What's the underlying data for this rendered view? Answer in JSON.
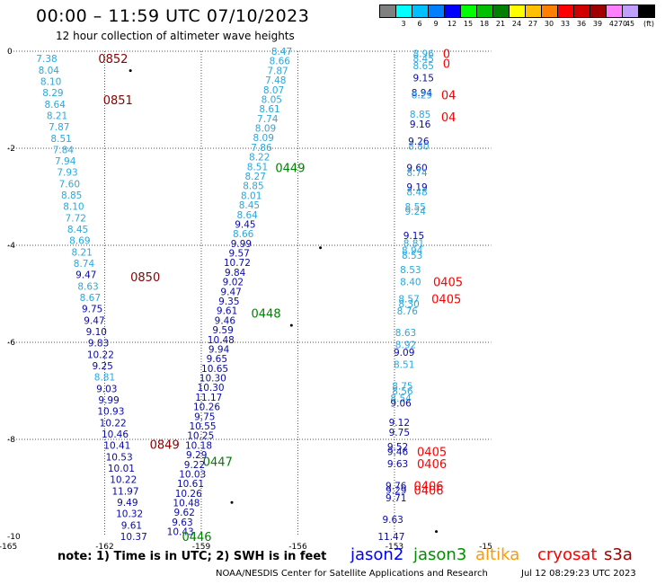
{
  "header": {
    "title": "00:00 – 11:59 UTC 07/10/2023",
    "subtitle": "12 hour collection of altimeter wave heights"
  },
  "scale": {
    "unit_label": "(ft)",
    "bins": [
      {
        "label": "",
        "color": "#808080"
      },
      {
        "label": "3",
        "color": "#00ffff"
      },
      {
        "label": "6",
        "color": "#00c0ff"
      },
      {
        "label": "9",
        "color": "#0080ff"
      },
      {
        "label": "12",
        "color": "#0000ff"
      },
      {
        "label": "15",
        "color": "#00ff00"
      },
      {
        "label": "18",
        "color": "#00c000"
      },
      {
        "label": "21",
        "color": "#008000"
      },
      {
        "label": "24",
        "color": "#ffff00"
      },
      {
        "label": "27",
        "color": "#ffc000"
      },
      {
        "label": "30",
        "color": "#ff8000"
      },
      {
        "label": "33",
        "color": "#ff0000"
      },
      {
        "label": "36",
        "color": "#d00000"
      },
      {
        "label": "39",
        "color": "#a00000"
      },
      {
        "label": "42",
        "color": "#ff80ff"
      },
      {
        "label": "45",
        "color": "#c0a0ff"
      },
      {
        "label": "70",
        "color": "#000000"
      }
    ]
  },
  "axes": {
    "lon_ticks": [
      "-165",
      "-162",
      "-159",
      "-156",
      "-153",
      "-15"
    ],
    "lat_ticks": [
      "0",
      "-2",
      "-4",
      "-6",
      "-8",
      "-10"
    ]
  },
  "colors": {
    "light": "#29a8de",
    "dark": "#0a0aa8",
    "time_dark": "#8b0000",
    "time_red": "#ff0000",
    "time_green": "#007f00"
  },
  "tracks": [
    {
      "lon0": -163.8,
      "lat0": -0.15,
      "lon1": -161.1,
      "lat1": -10.0,
      "dlat": 0.2,
      "values": [
        {
          "v": "7.38",
          "c": "light"
        },
        {
          "v": "8.04",
          "c": "light"
        },
        {
          "v": "8.10",
          "c": "light"
        },
        {
          "v": "8.29",
          "c": "light"
        },
        {
          "v": "8.64",
          "c": "light"
        },
        {
          "v": "8.21",
          "c": "light"
        },
        {
          "v": "7.87",
          "c": "light"
        },
        {
          "v": "8.51",
          "c": "light"
        },
        {
          "v": "7.84",
          "c": "light"
        },
        {
          "v": "7.94",
          "c": "light"
        },
        {
          "v": "7.93",
          "c": "light"
        },
        {
          "v": "7.60",
          "c": "light"
        },
        {
          "v": "8.85",
          "c": "light"
        },
        {
          "v": "8.10",
          "c": "light"
        },
        {
          "v": "7.72",
          "c": "light"
        },
        {
          "v": "8.45",
          "c": "light"
        },
        {
          "v": "8.69",
          "c": "light"
        },
        {
          "v": "8.21",
          "c": "light"
        },
        {
          "v": "8.74",
          "c": "light"
        },
        {
          "v": "9.47",
          "c": "dark"
        },
        {
          "v": "8.63",
          "c": "light"
        },
        {
          "v": "8.67",
          "c": "light"
        },
        {
          "v": "9.75",
          "c": "dark"
        },
        {
          "v": "9.47",
          "c": "dark"
        },
        {
          "v": "9.10",
          "c": "dark"
        },
        {
          "v": "9.83",
          "c": "dark"
        },
        {
          "v": "10.22",
          "c": "dark"
        },
        {
          "v": "9.25",
          "c": "dark"
        },
        {
          "v": "8.81",
          "c": "light"
        },
        {
          "v": "9.03",
          "c": "dark"
        },
        {
          "v": "9.99",
          "c": "dark"
        },
        {
          "v": "10.93",
          "c": "dark"
        },
        {
          "v": "10.22",
          "c": "dark"
        },
        {
          "v": "10.46",
          "c": "dark"
        },
        {
          "v": "10.41",
          "c": "dark"
        },
        {
          "v": "10.53",
          "c": "dark"
        },
        {
          "v": "10.01",
          "c": "dark"
        },
        {
          "v": "10.22",
          "c": "dark"
        },
        {
          "v": "11.97",
          "c": "dark"
        },
        {
          "v": "9.49",
          "c": "dark"
        },
        {
          "v": "10.32",
          "c": "dark"
        },
        {
          "v": "9.61",
          "c": "dark"
        },
        {
          "v": "10.37",
          "c": "dark"
        }
      ]
    },
    {
      "lon0": -159.65,
      "lat0": -9.9,
      "lon1": -156.5,
      "lat1": 0.0,
      "dlat": -0.2,
      "values": [
        {
          "v": "10.43",
          "c": "dark"
        },
        {
          "v": "9.63",
          "c": "dark"
        },
        {
          "v": "9.62",
          "c": "dark"
        },
        {
          "v": "10.48",
          "c": "dark"
        },
        {
          "v": "10.26",
          "c": "dark"
        },
        {
          "v": "10.61",
          "c": "dark"
        },
        {
          "v": "10.03",
          "c": "dark"
        },
        {
          "v": "9.22",
          "c": "dark"
        },
        {
          "v": "9.29",
          "c": "dark"
        },
        {
          "v": "10.18",
          "c": "dark"
        },
        {
          "v": "10.25",
          "c": "dark"
        },
        {
          "v": "10.55",
          "c": "dark"
        },
        {
          "v": "9.75",
          "c": "dark"
        },
        {
          "v": "10.26",
          "c": "dark"
        },
        {
          "v": "11.17",
          "c": "dark"
        },
        {
          "v": "10.30",
          "c": "dark"
        },
        {
          "v": "10.30",
          "c": "dark"
        },
        {
          "v": "10.65",
          "c": "dark"
        },
        {
          "v": "9.65",
          "c": "dark"
        },
        {
          "v": "9.94",
          "c": "dark"
        },
        {
          "v": "10.48",
          "c": "dark"
        },
        {
          "v": "9.59",
          "c": "dark"
        },
        {
          "v": "9.46",
          "c": "dark"
        },
        {
          "v": "9.61",
          "c": "dark"
        },
        {
          "v": "9.35",
          "c": "dark"
        },
        {
          "v": "9.47",
          "c": "dark"
        },
        {
          "v": "9.02",
          "c": "dark"
        },
        {
          "v": "9.84",
          "c": "dark"
        },
        {
          "v": "10.72",
          "c": "dark"
        },
        {
          "v": "9.57",
          "c": "dark"
        },
        {
          "v": "9.99",
          "c": "dark"
        },
        {
          "v": "8.66",
          "c": "light"
        },
        {
          "v": "9.45",
          "c": "dark"
        },
        {
          "v": "8.64",
          "c": "light"
        },
        {
          "v": "8.45",
          "c": "light"
        },
        {
          "v": "8.01",
          "c": "light"
        },
        {
          "v": "8.85",
          "c": "light"
        },
        {
          "v": "8.27",
          "c": "light"
        },
        {
          "v": "8.51",
          "c": "light"
        },
        {
          "v": "8.22",
          "c": "light"
        },
        {
          "v": "7.86",
          "c": "light"
        },
        {
          "v": "8.09",
          "c": "light"
        },
        {
          "v": "8.09",
          "c": "light"
        },
        {
          "v": "7.74",
          "c": "light"
        },
        {
          "v": "8.61",
          "c": "light"
        },
        {
          "v": "8.05",
          "c": "light"
        },
        {
          "v": "8.07",
          "c": "light"
        },
        {
          "v": "7.48",
          "c": "light"
        },
        {
          "v": "7.87",
          "c": "light"
        },
        {
          "v": "8.66",
          "c": "light"
        },
        {
          "v": "8.47",
          "c": "light"
        }
      ]
    }
  ],
  "east_values": [
    {
      "v": "8.96",
      "c": "light",
      "lon": -152.1,
      "lat": -0.05
    },
    {
      "v": "8.45",
      "c": "light",
      "lon": -152.1,
      "lat": -0.15
    },
    {
      "v": "8.65",
      "c": "light",
      "lon": -152.1,
      "lat": -0.3
    },
    {
      "v": "9.15",
      "c": "dark",
      "lon": -152.1,
      "lat": -0.55
    },
    {
      "v": "8.94",
      "c": "dark",
      "lon": -152.15,
      "lat": -0.85
    },
    {
      "v": "8.29",
      "c": "light",
      "lon": -152.15,
      "lat": -0.9
    },
    {
      "v": "8.85",
      "c": "light",
      "lon": -152.2,
      "lat": -1.3
    },
    {
      "v": "9.16",
      "c": "dark",
      "lon": -152.2,
      "lat": -1.5
    },
    {
      "v": "9.26",
      "c": "dark",
      "lon": -152.25,
      "lat": -1.85
    },
    {
      "v": "8.80",
      "c": "light",
      "lon": -152.25,
      "lat": -1.95
    },
    {
      "v": "9.60",
      "c": "dark",
      "lon": -152.3,
      "lat": -2.4
    },
    {
      "v": "8.74",
      "c": "light",
      "lon": -152.3,
      "lat": -2.5
    },
    {
      "v": "9.19",
      "c": "dark",
      "lon": -152.3,
      "lat": -2.8
    },
    {
      "v": "8.48",
      "c": "light",
      "lon": -152.3,
      "lat": -2.9
    },
    {
      "v": "8.55",
      "c": "light",
      "lon": -152.35,
      "lat": -3.2
    },
    {
      "v": "9.24",
      "c": "light",
      "lon": -152.35,
      "lat": -3.3
    },
    {
      "v": "9.15",
      "c": "dark",
      "lon": -152.4,
      "lat": -3.8
    },
    {
      "v": "8.81",
      "c": "light",
      "lon": -152.4,
      "lat": -3.95
    },
    {
      "v": "8.94",
      "c": "light",
      "lon": -152.45,
      "lat": -4.1
    },
    {
      "v": "8.53",
      "c": "light",
      "lon": -152.45,
      "lat": -4.2
    },
    {
      "v": "8.53",
      "c": "light",
      "lon": -152.5,
      "lat": -4.5
    },
    {
      "v": "8.40",
      "c": "light",
      "lon": -152.5,
      "lat": -4.75
    },
    {
      "v": "8.57",
      "c": "light",
      "lon": -152.55,
      "lat": -5.1
    },
    {
      "v": "8.30",
      "c": "light",
      "lon": -152.55,
      "lat": -5.2
    },
    {
      "v": "8.76",
      "c": "light",
      "lon": -152.6,
      "lat": -5.35
    },
    {
      "v": "8.63",
      "c": "light",
      "lon": -152.65,
      "lat": -5.8
    },
    {
      "v": "8.92",
      "c": "light",
      "lon": -152.65,
      "lat": -6.05
    },
    {
      "v": "9.09",
      "c": "dark",
      "lon": -152.7,
      "lat": -6.2
    },
    {
      "v": "8.51",
      "c": "light",
      "lon": -152.7,
      "lat": -6.45
    },
    {
      "v": "8.75",
      "c": "light",
      "lon": -152.75,
      "lat": -6.9
    },
    {
      "v": "8.56",
      "c": "light",
      "lon": -152.75,
      "lat": -7.0
    },
    {
      "v": "8.54",
      "c": "light",
      "lon": -152.8,
      "lat": -7.15
    },
    {
      "v": "9.06",
      "c": "dark",
      "lon": -152.8,
      "lat": -7.25
    },
    {
      "v": "9.12",
      "c": "dark",
      "lon": -152.85,
      "lat": -7.65
    },
    {
      "v": "9.75",
      "c": "dark",
      "lon": -152.85,
      "lat": -7.85
    },
    {
      "v": "9.52",
      "c": "dark",
      "lon": -152.9,
      "lat": -8.15
    },
    {
      "v": "9.46",
      "c": "dark",
      "lon": -152.9,
      "lat": -8.25
    },
    {
      "v": "9.63",
      "c": "dark",
      "lon": -152.9,
      "lat": -8.5
    },
    {
      "v": "9.76",
      "c": "dark",
      "lon": -152.95,
      "lat": -8.95
    },
    {
      "v": "9.29",
      "c": "dark",
      "lon": -152.95,
      "lat": -9.05
    },
    {
      "v": "9.71",
      "c": "dark",
      "lon": -152.95,
      "lat": -9.2
    },
    {
      "v": "9.63",
      "c": "dark",
      "lon": -153.05,
      "lat": -9.65
    },
    {
      "v": "11.47",
      "c": "dark",
      "lon": -153.1,
      "lat": -10.0
    }
  ],
  "time_labels": [
    {
      "t": "0852",
      "c": "time_dark",
      "lon": -162.2,
      "lat": -0.15
    },
    {
      "t": "0851",
      "c": "time_dark",
      "lon": -162.05,
      "lat": -1.0
    },
    {
      "t": "0850",
      "c": "time_dark",
      "lon": -161.2,
      "lat": -4.65
    },
    {
      "t": "0849",
      "c": "time_dark",
      "lon": -160.6,
      "lat": -8.1
    },
    {
      "t": "0449",
      "c": "time_green",
      "lon": -156.7,
      "lat": -2.4
    },
    {
      "t": "0448",
      "c": "time_green",
      "lon": -157.45,
      "lat": -5.4
    },
    {
      "t": "0447",
      "c": "time_green",
      "lon": -158.95,
      "lat": -8.45
    },
    {
      "t": "0446",
      "c": "time_green",
      "lon": -159.6,
      "lat": -10.0
    },
    {
      "t": "0",
      "c": "time_red",
      "lon": -151.5,
      "lat": -0.05
    },
    {
      "t": "0",
      "c": "time_red",
      "lon": -151.5,
      "lat": -0.25
    },
    {
      "t": "04",
      "c": "time_red",
      "lon": -151.55,
      "lat": -0.9
    },
    {
      "t": "04",
      "c": "time_red",
      "lon": -151.55,
      "lat": -1.35
    },
    {
      "t": "0405",
      "c": "time_red",
      "lon": -151.8,
      "lat": -4.75
    },
    {
      "t": "0405",
      "c": "time_red",
      "lon": -151.85,
      "lat": -5.1
    },
    {
      "t": "0405",
      "c": "time_red",
      "lon": -152.3,
      "lat": -8.25
    },
    {
      "t": "0406",
      "c": "time_red",
      "lon": -152.3,
      "lat": -8.5
    },
    {
      "t": "0406",
      "c": "time_red",
      "lon": -152.4,
      "lat": -8.95
    },
    {
      "t": "0406",
      "c": "time_red",
      "lon": -152.4,
      "lat": -9.05
    }
  ],
  "islands": [
    {
      "lon": -161.2,
      "lat": -0.4
    },
    {
      "lon": -155.3,
      "lat": -4.05
    },
    {
      "lon": -156.2,
      "lat": -5.65
    },
    {
      "lon": -158.05,
      "lat": -9.3
    },
    {
      "lon": -151.7,
      "lat": -9.9
    }
  ],
  "footer": {
    "note": "note:  1) Time is in UTC;  2) SWH is in feet",
    "satellites": [
      {
        "name": "jason2",
        "color": "#0000ff"
      },
      {
        "name": "jason3",
        "color": "#009000"
      },
      {
        "name": "altika",
        "color": "#ff9900"
      },
      {
        "name": "cryosat",
        "color": "#ff0000"
      },
      {
        "name": "s3a",
        "color": "#a00000"
      }
    ],
    "credit": "NOAA/NESDIS Center for Satellite Applications and Research",
    "date": "Jul 12 08:29:23 UTC 2023"
  }
}
